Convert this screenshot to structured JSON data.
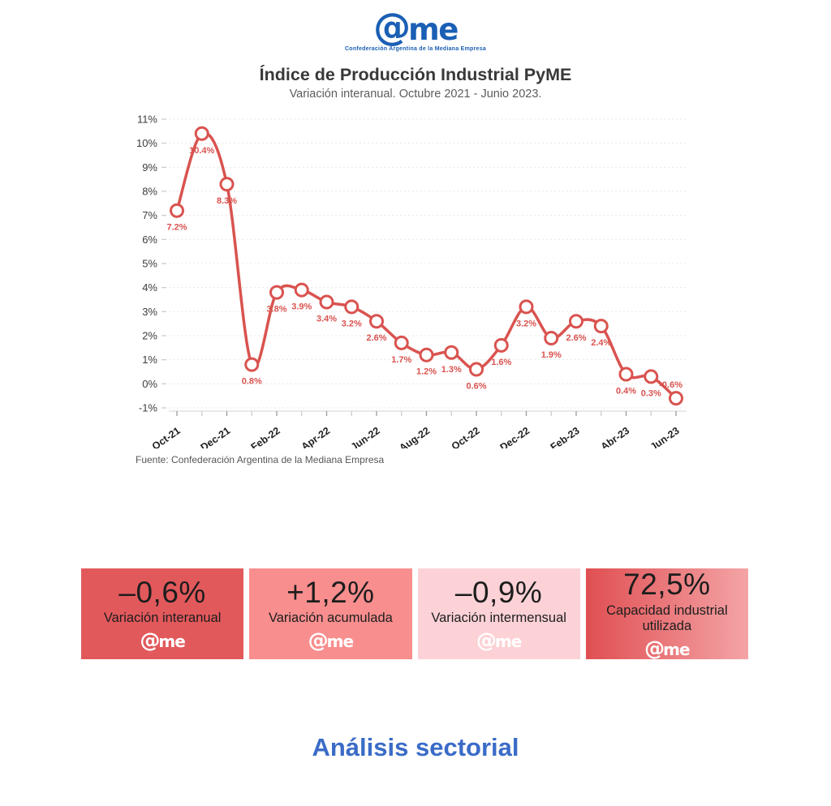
{
  "logo": {
    "mark_at": "@",
    "mark_me": "me",
    "subtext": "Confederación Argentina de la Mediana Empresa",
    "color": "#1a5fb4"
  },
  "chart_data": {
    "type": "line",
    "title": "Índice de Producción Industrial PyME",
    "subtitle": "Variación interanual. Octubre 2021 - Junio 2023.",
    "x_tick_labels": [
      "Oct-21",
      "Dec-21",
      "Feb-22",
      "Apr-22",
      "Jun-22",
      "Aug-22",
      "Oct-22",
      "Dec-22",
      "Feb-23",
      "Abr-23",
      "Jun-23"
    ],
    "x_tick_indices": [
      0,
      2,
      4,
      6,
      8,
      10,
      12,
      14,
      16,
      18,
      20
    ],
    "values": [
      7.2,
      10.4,
      8.3,
      0.8,
      3.8,
      3.9,
      3.4,
      3.2,
      2.6,
      1.7,
      1.2,
      1.3,
      0.6,
      1.6,
      3.2,
      1.9,
      2.6,
      2.4,
      0.4,
      0.3,
      -0.6
    ],
    "point_labels": [
      "7.2%",
      "10.4%",
      "8.3%",
      "0.8%",
      "3.8%",
      "3.9%",
      "3.4%",
      "3.2%",
      "2.6%",
      "1.7%",
      "1.2%",
      "1.3%",
      "0.6%",
      "1.6%",
      "3.2%",
      "1.9%",
      "2.6%",
      "2.4%",
      "0.4%",
      "0.3%",
      "-0.6%"
    ],
    "y_tick_labels": [
      "11%",
      "10%",
      "9%",
      "8%",
      "7%",
      "6%",
      "5%",
      "4%",
      "3%",
      "2%",
      "1%",
      "0%",
      "-1%"
    ],
    "ylim": [
      -1,
      11
    ],
    "grid": true,
    "line_color": "#d9534f",
    "marker": "open-circle"
  },
  "source_note": "Fuente: Confederación Argentina de la Mediana Empresa",
  "cards": [
    {
      "value": "–0,6%",
      "label": "Variación interanual",
      "bg": "#e2595c"
    },
    {
      "value": "+1,2%",
      "label": "Variación acumulada",
      "bg": "#f98e8e"
    },
    {
      "value": "–0,9%",
      "label": "Variación intermensual",
      "bg": "#fcd2d6"
    },
    {
      "value": "72,5%",
      "label": "Capacidad industrial utilizada",
      "bg": "linear-gradient(90deg,#e04f52,#f4a4a6)"
    }
  ],
  "section_heading": {
    "text": "Análisis sectorial",
    "color": "#3a6bc7"
  }
}
